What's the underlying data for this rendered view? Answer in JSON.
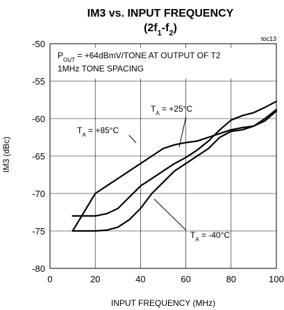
{
  "chart_data": {
    "type": "line",
    "title": "IM3 vs. INPUT FREQUENCY",
    "subtitle": "(2f1-f2)",
    "figure_tag": "toc13",
    "xlabel": "INPUT FREQUENCY (MHz)",
    "ylabel": "IM3 (dBc)",
    "xlim": [
      0,
      100
    ],
    "ylim": [
      -80,
      -50
    ],
    "x_ticks": [
      "0",
      "20",
      "40",
      "60",
      "80",
      "100"
    ],
    "y_ticks": [
      "-50",
      "-55",
      "-60",
      "-65",
      "-70",
      "-75",
      "-80"
    ],
    "grid": true,
    "annotations": {
      "line1": "POUT = +64dBmV/TONE AT OUTPUT OF T2",
      "line2": "1MHz TONE SPACING"
    },
    "series": [
      {
        "name": "TA = +85°C",
        "x": [
          10,
          13,
          17,
          20,
          25,
          30,
          35,
          40,
          45,
          50,
          55,
          60,
          65,
          70,
          75,
          80,
          85,
          90,
          95,
          100
        ],
        "y": [
          -75,
          -73.5,
          -71.5,
          -70,
          -69,
          -68,
          -67,
          -66,
          -65,
          -64,
          -63.5,
          -63.2,
          -63,
          -62.5,
          -62,
          -61.5,
          -61.2,
          -61,
          -60.3,
          -59
        ]
      },
      {
        "name": "TA = +25°C",
        "x": [
          10,
          15,
          20,
          25,
          30,
          35,
          40,
          45,
          50,
          55,
          60,
          65,
          70,
          75,
          80,
          85,
          90,
          95,
          100
        ],
        "y": [
          -73,
          -73,
          -73,
          -72.7,
          -72,
          -70.5,
          -69,
          -68,
          -67,
          -66,
          -65.2,
          -64.2,
          -63,
          -61.5,
          -60.2,
          -59.6,
          -59.2,
          -58.5,
          -57.7
        ]
      },
      {
        "name": "TA = -40°C",
        "x": [
          10,
          15,
          20,
          25,
          30,
          35,
          40,
          45,
          50,
          55,
          60,
          65,
          70,
          75,
          80,
          85,
          90,
          95,
          100
        ],
        "y": [
          -75,
          -75,
          -75,
          -74.9,
          -74.5,
          -73.5,
          -72,
          -70,
          -68.5,
          -67,
          -66,
          -65,
          -64,
          -62.5,
          -61.7,
          -61.5,
          -61,
          -60,
          -58.8
        ]
      }
    ],
    "series_labels": {
      "s85": {
        "pre": "T",
        "sub": "A",
        "post": " = +85°C"
      },
      "s25": {
        "pre": "T",
        "sub": "A",
        "post": " = +25°C"
      },
      "sm40": {
        "pre": "T",
        "sub": "A",
        "post": " = -40°C"
      }
    },
    "title_parts": {
      "line2_pre": "(2f",
      "sub1": "1",
      "mid": "-f",
      "sub2": "2",
      "post": ")"
    },
    "note_parts": {
      "pre": "P",
      "sub": "OUT",
      "post": " = +64dBmV/TONE AT OUTPUT OF T2"
    }
  }
}
